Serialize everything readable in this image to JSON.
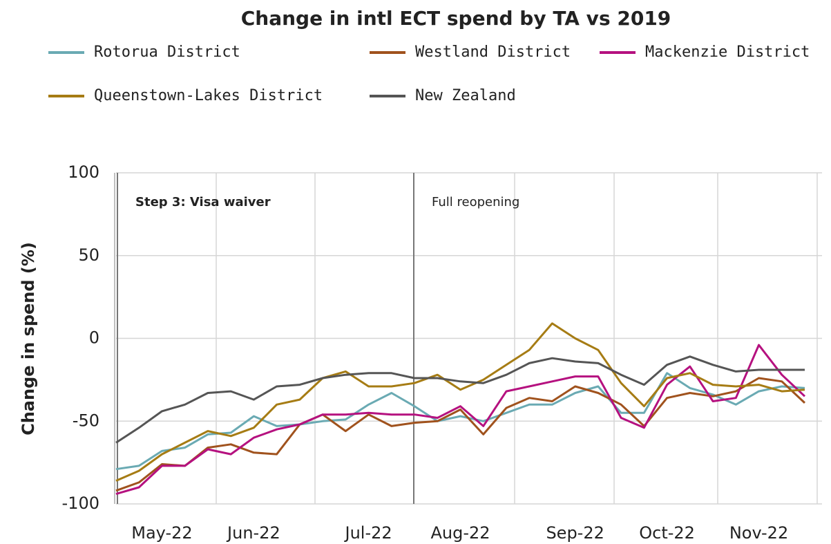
{
  "chart_data": {
    "type": "line",
    "title": "Change in intl ECT spend by TA vs 2019",
    "y_label": "Change in spend (%)",
    "categories": [
      null,
      null,
      "May-22",
      null,
      null,
      null,
      "Jun-22",
      null,
      null,
      null,
      null,
      "Jul-22",
      null,
      null,
      null,
      "Aug-22",
      null,
      null,
      null,
      null,
      "Sep-22",
      null,
      null,
      null,
      "Oct-22",
      null,
      null,
      null,
      "Nov-22",
      null,
      null
    ],
    "series": [
      {
        "name": "Rotorua District",
        "color": "#6aaab3",
        "values": [
          -79,
          -77,
          -68,
          -66,
          -58,
          -57,
          -47,
          -53,
          -52,
          -50,
          -49,
          -40,
          -33,
          -41,
          -50,
          -47,
          -50,
          -45,
          -40,
          -40,
          -33,
          -29,
          -45,
          -45,
          -21,
          -30,
          -34,
          -40,
          -32,
          -29,
          -30
        ]
      },
      {
        "name": "Westland District",
        "color": "#a0521d",
        "values": [
          -92,
          -87,
          -76,
          -77,
          -66,
          -64,
          -69,
          -70,
          -52,
          -46,
          -56,
          -46,
          -53,
          -51,
          -50,
          -43,
          -58,
          -42,
          -36,
          -38,
          -29,
          -33,
          -40,
          -53,
          -36,
          -33,
          -35,
          -32,
          -24,
          -26,
          -39
        ]
      },
      {
        "name": "Mackenzie District",
        "color": "#b5117f",
        "values": [
          -94,
          -90,
          -77,
          -77,
          -67,
          -70,
          -60,
          -55,
          -52,
          -46,
          -46,
          -45,
          -46,
          -46,
          -48,
          -41,
          -53,
          -32,
          -29,
          -26,
          -23,
          -23,
          -48,
          -54,
          -28,
          -17,
          -38,
          -36,
          -4,
          -22,
          -35
        ]
      },
      {
        "name": "Queenstown-Lakes District",
        "color": "#a67c14",
        "values": [
          -86,
          -80,
          -70,
          -63,
          -56,
          -59,
          -54,
          -40,
          -37,
          -24,
          -20,
          -29,
          -29,
          -27,
          -22,
          -31,
          -25,
          -16,
          -7,
          9,
          0,
          -7,
          -27,
          -41,
          -24,
          -21,
          -28,
          -29,
          -28,
          -32,
          -31
        ]
      },
      {
        "name": "New Zealand",
        "color": "#555555",
        "values": [
          -63,
          -54,
          -44,
          -40,
          -33,
          -32,
          -37,
          -29,
          -28,
          -24,
          -22,
          -21,
          -21,
          -24,
          -24,
          -26,
          -27,
          -22,
          -15,
          -12,
          -14,
          -15,
          -22,
          -28,
          -16,
          -11,
          -16,
          -20,
          -19,
          -19,
          -19
        ]
      }
    ],
    "annotations": [
      {
        "text": "Step 3: Visa waiver",
        "color": "#2a7482"
      },
      {
        "text": "Full reopening",
        "color": "#333333"
      }
    ],
    "ylim": [
      -100,
      100
    ],
    "yticks": [
      -100,
      -50,
      0,
      50,
      100
    ],
    "grid": true
  }
}
